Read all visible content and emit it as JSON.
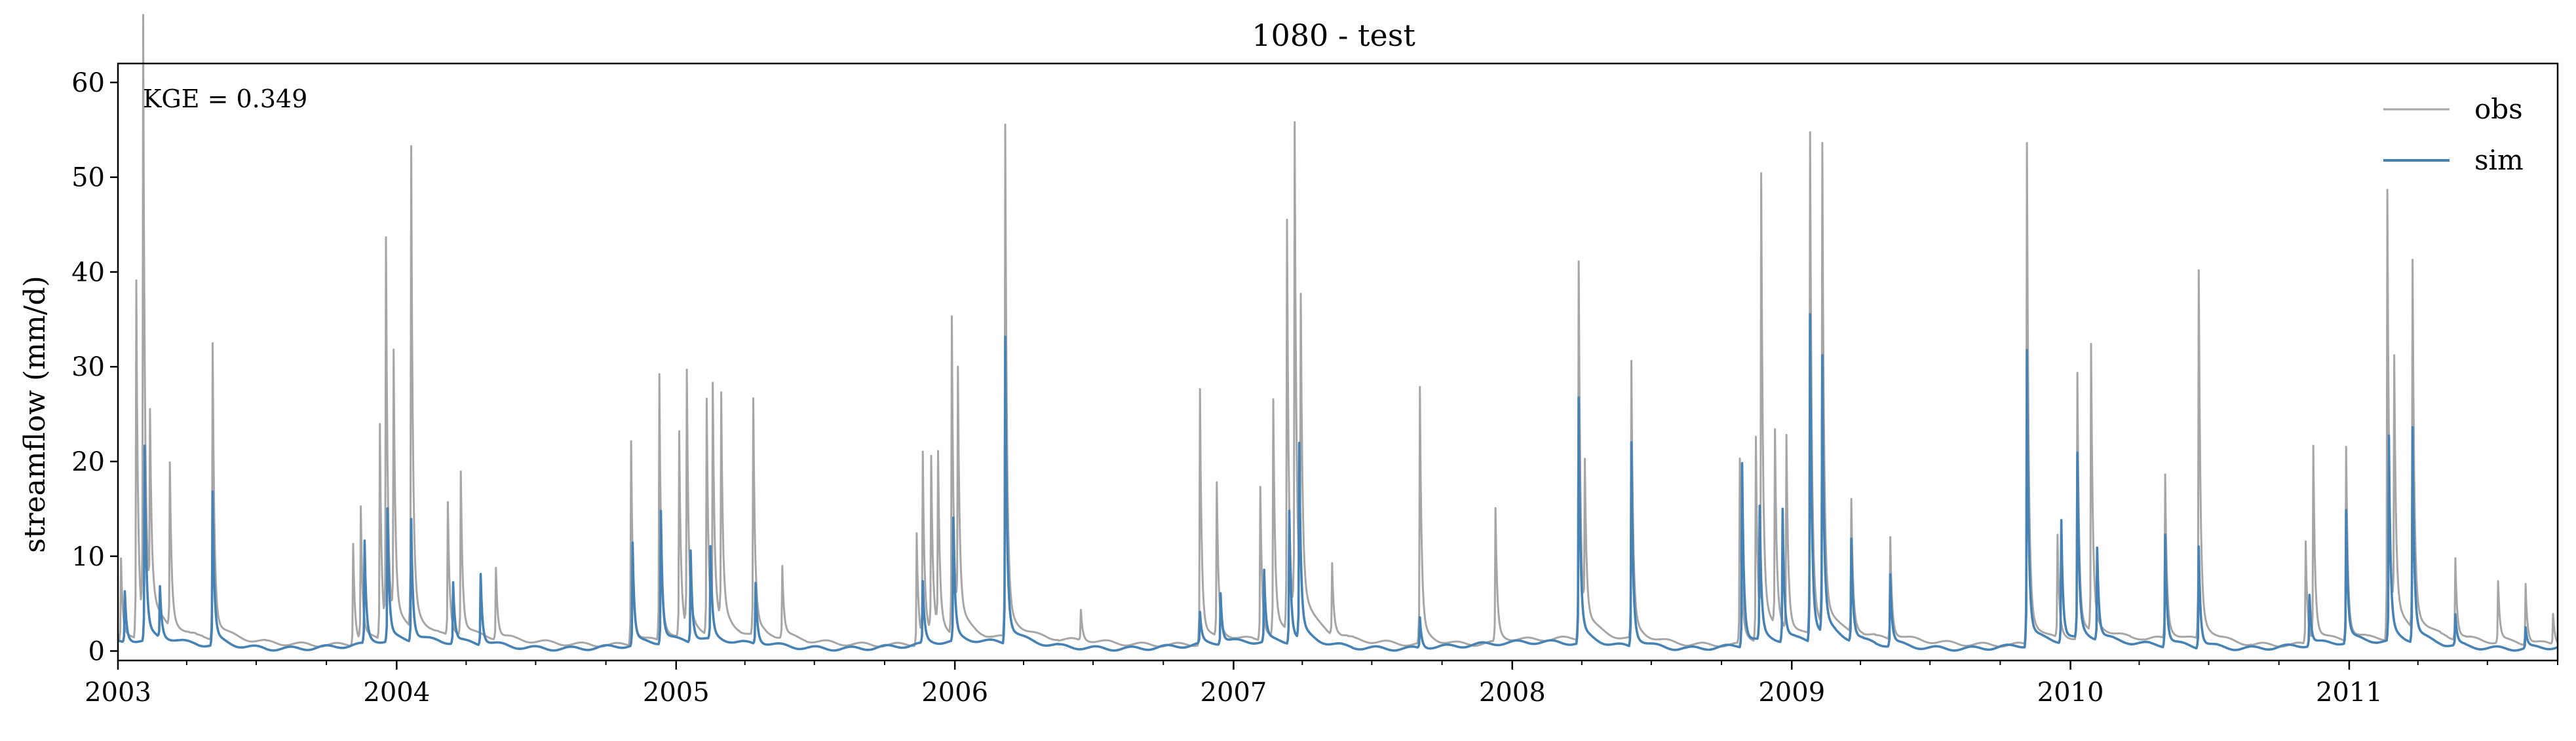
{
  "chart_data": {
    "type": "line",
    "title": "1080 - test",
    "xlabel": "",
    "ylabel": "streamflow (mm/d)",
    "annotation": "KGE = 0.349",
    "xlim": [
      "2003-01-01",
      "2011-10-01"
    ],
    "ylim": [
      -1,
      62
    ],
    "yticks": [
      0,
      10,
      20,
      30,
      40,
      50,
      60
    ],
    "xticks": [
      "2003",
      "2004",
      "2005",
      "2006",
      "2007",
      "2008",
      "2009",
      "2010",
      "2011"
    ],
    "grid": false,
    "legend": "top-right",
    "series": [
      {
        "name": "obs",
        "color": "#a6a6a6",
        "baseline": 1.0,
        "peaks": [
          [
            "2003-01-05",
            8
          ],
          [
            "2003-01-25",
            35
          ],
          [
            "2003-02-03",
            59
          ],
          [
            "2003-02-12",
            18
          ],
          [
            "2003-03-10",
            16
          ],
          [
            "2003-05-05",
            29
          ],
          [
            "2003-11-05",
            10
          ],
          [
            "2003-11-15",
            13
          ],
          [
            "2003-12-10",
            21
          ],
          [
            "2003-12-18",
            38
          ],
          [
            "2003-12-28",
            26
          ],
          [
            "2004-01-20",
            47
          ],
          [
            "2004-03-08",
            13
          ],
          [
            "2004-03-25",
            16
          ],
          [
            "2004-05-10",
            7
          ],
          [
            "2004-11-03",
            20
          ],
          [
            "2004-12-10",
            26
          ],
          [
            "2005-01-05",
            20
          ],
          [
            "2005-01-15",
            25
          ],
          [
            "2005-02-10",
            23
          ],
          [
            "2005-02-18",
            23
          ],
          [
            "2005-03-01",
            22
          ],
          [
            "2005-04-12",
            23
          ],
          [
            "2005-05-20",
            7
          ],
          [
            "2005-11-12",
            11
          ],
          [
            "2005-11-20",
            18
          ],
          [
            "2005-12-01",
            17
          ],
          [
            "2005-12-10",
            17
          ],
          [
            "2005-12-28",
            31
          ],
          [
            "2006-01-05",
            24
          ],
          [
            "2006-03-08",
            50
          ],
          [
            "2006-06-15",
            3
          ],
          [
            "2006-11-18",
            25
          ],
          [
            "2006-12-10",
            15
          ],
          [
            "2007-02-05",
            15
          ],
          [
            "2007-02-22",
            23
          ],
          [
            "2007-03-12",
            40
          ],
          [
            "2007-03-22",
            48
          ],
          [
            "2007-03-30",
            29
          ],
          [
            "2007-05-10",
            7
          ],
          [
            "2007-09-02",
            25
          ],
          [
            "2007-12-10",
            13
          ],
          [
            "2008-03-28",
            37
          ],
          [
            "2008-04-05",
            15
          ],
          [
            "2008-06-05",
            27
          ],
          [
            "2008-10-25",
            18
          ],
          [
            "2008-11-15",
            20
          ],
          [
            "2008-11-22",
            44
          ],
          [
            "2008-12-10",
            19
          ],
          [
            "2008-12-25",
            19
          ],
          [
            "2009-01-25",
            49
          ],
          [
            "2009-02-10",
            47
          ],
          [
            "2009-03-20",
            13
          ],
          [
            "2009-05-10",
            10
          ],
          [
            "2009-11-05",
            49
          ],
          [
            "2009-12-15",
            10
          ],
          [
            "2010-01-10",
            26
          ],
          [
            "2010-01-28",
            28
          ],
          [
            "2010-05-05",
            16
          ],
          [
            "2010-06-18",
            36
          ],
          [
            "2010-11-05",
            10
          ],
          [
            "2010-11-15",
            19
          ],
          [
            "2010-12-28",
            19
          ],
          [
            "2011-02-20",
            44
          ],
          [
            "2011-03-01",
            25
          ],
          [
            "2011-03-25",
            36
          ],
          [
            "2011-05-20",
            8
          ],
          [
            "2011-07-15",
            6
          ],
          [
            "2011-08-20",
            6
          ],
          [
            "2011-09-25",
            3
          ]
        ]
      },
      {
        "name": "sim",
        "color": "#4682b4",
        "baseline": 0.6,
        "peaks": [
          [
            "2003-01-10",
            5
          ],
          [
            "2003-02-05",
            19
          ],
          [
            "2003-02-25",
            5
          ],
          [
            "2003-05-05",
            15
          ],
          [
            "2003-11-20",
            10
          ],
          [
            "2003-12-20",
            13
          ],
          [
            "2004-01-20",
            12
          ],
          [
            "2004-03-15",
            6
          ],
          [
            "2004-04-20",
            7
          ],
          [
            "2004-11-05",
            10
          ],
          [
            "2004-12-12",
            13
          ],
          [
            "2005-01-20",
            9
          ],
          [
            "2005-02-15",
            9
          ],
          [
            "2005-04-15",
            6
          ],
          [
            "2005-11-20",
            6
          ],
          [
            "2005-12-30",
            12
          ],
          [
            "2006-03-08",
            30
          ],
          [
            "2006-11-18",
            3
          ],
          [
            "2006-12-15",
            5
          ],
          [
            "2007-02-10",
            7
          ],
          [
            "2007-03-15",
            13
          ],
          [
            "2007-03-28",
            19
          ],
          [
            "2007-09-02",
            3
          ],
          [
            "2008-03-28",
            24
          ],
          [
            "2008-06-05",
            20
          ],
          [
            "2008-10-28",
            18
          ],
          [
            "2008-11-20",
            13
          ],
          [
            "2008-12-20",
            13
          ],
          [
            "2009-01-25",
            32
          ],
          [
            "2009-02-10",
            27
          ],
          [
            "2009-03-20",
            10
          ],
          [
            "2009-05-10",
            7
          ],
          [
            "2009-11-05",
            29
          ],
          [
            "2009-12-20",
            12
          ],
          [
            "2010-01-10",
            18
          ],
          [
            "2010-02-05",
            9
          ],
          [
            "2010-05-05",
            11
          ],
          [
            "2010-06-18",
            10
          ],
          [
            "2010-11-10",
            5
          ],
          [
            "2010-12-28",
            13
          ],
          [
            "2011-02-22",
            20
          ],
          [
            "2011-03-25",
            21
          ],
          [
            "2011-05-20",
            3
          ],
          [
            "2011-08-20",
            2
          ]
        ]
      }
    ]
  }
}
